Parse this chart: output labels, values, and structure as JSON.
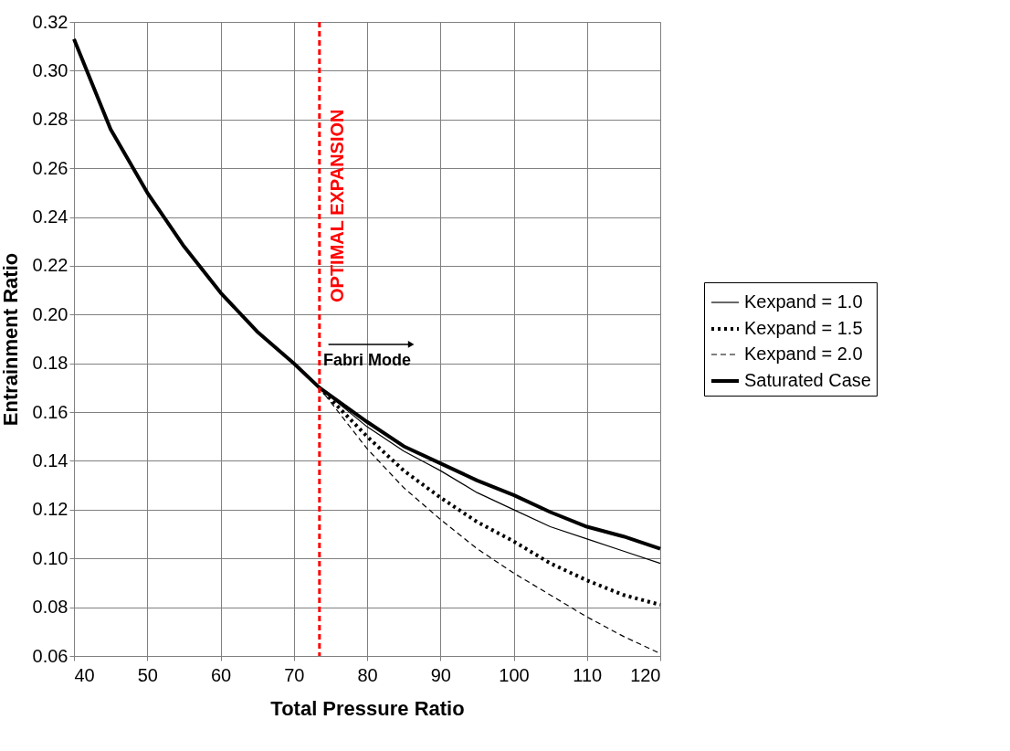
{
  "chart_data": {
    "type": "line",
    "xlabel": "Total Pressure Ratio",
    "ylabel": "Entrainment Ratio",
    "xlim": [
      40,
      120
    ],
    "xticks": [
      40,
      50,
      60,
      70,
      80,
      90,
      100,
      110,
      120
    ],
    "ylim": [
      0.06,
      0.32
    ],
    "yticks": [
      0.06,
      0.08,
      {
        "value": 0.1,
        "label": "0.10"
      },
      0.12,
      0.14,
      0.16,
      0.18,
      {
        "value": 0.2,
        "label": "0.20"
      },
      0.22,
      0.24,
      0.26,
      0.28,
      {
        "value": 0.3,
        "label": "0.30"
      },
      0.32
    ],
    "grid": true,
    "legend": "right",
    "marker": "none",
    "series": [
      {
        "name": "Kexpand = 1.0",
        "color": "#000000",
        "line_style": "solid",
        "x": [
          73.5,
          80,
          85,
          90,
          95,
          100,
          105,
          110,
          115,
          120
        ],
        "values": [
          0.17,
          0.154,
          0.144,
          0.136,
          0.127,
          0.12,
          0.113,
          0.108,
          0.103,
          0.098
        ]
      },
      {
        "name": "Kexpand = 1.5",
        "color": "#000000",
        "line_style": "dotted",
        "x": [
          73.5,
          80,
          85,
          90,
          95,
          100,
          105,
          110,
          115,
          120
        ],
        "values": [
          0.17,
          0.15,
          0.136,
          0.125,
          0.115,
          0.107,
          0.098,
          0.091,
          0.085,
          0.081
        ]
      },
      {
        "name": "Kexpand = 2.0",
        "color": "#000000",
        "line_style": "dashed",
        "x": [
          73.5,
          80,
          85,
          90,
          95,
          100,
          105,
          110,
          115,
          120
        ],
        "values": [
          0.17,
          0.145,
          0.129,
          0.116,
          0.104,
          0.094,
          0.085,
          0.076,
          0.068,
          0.061
        ]
      },
      {
        "name": "Saturated Case",
        "color": "#000000",
        "line_style": "solid",
        "x": [
          40,
          45,
          50,
          55,
          60,
          65,
          70,
          73.5,
          80,
          85,
          90,
          95,
          100,
          105,
          110,
          115,
          120
        ],
        "values": [
          0.313,
          0.276,
          0.25,
          0.228,
          0.209,
          0.193,
          0.18,
          0.17,
          0.156,
          0.146,
          0.139,
          0.132,
          0.126,
          0.119,
          0.113,
          0.109,
          0.104
        ]
      }
    ],
    "ref_lines": [
      {
        "axis": "x",
        "value": 73.5,
        "label": "OPTIMAL EXPANSION",
        "color": "#ff0000",
        "line_style": "dashed"
      }
    ],
    "annotations": [
      "Fabri Mode"
    ]
  }
}
